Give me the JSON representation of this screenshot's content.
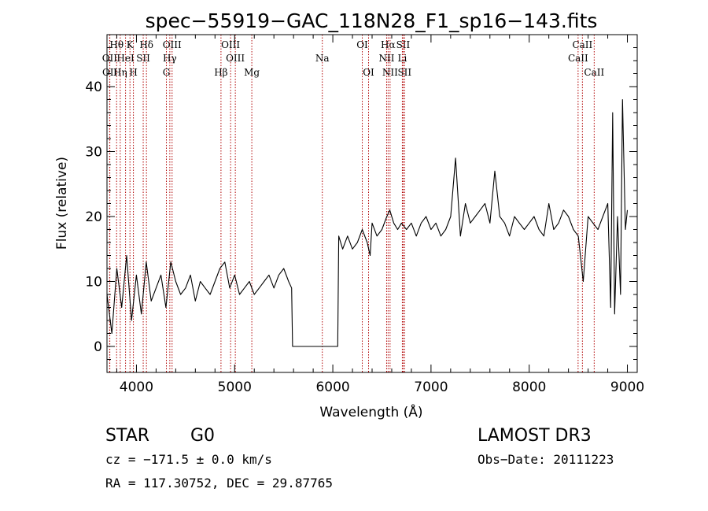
{
  "chart_data": {
    "type": "line",
    "title": "spec−55919−GAC_118N28_F1_sp16−143.fits",
    "xlabel": "Wavelength (Å)",
    "ylabel": "Flux (relative)",
    "xlim": [
      3700,
      9100
    ],
    "ylim": [
      -4,
      48
    ],
    "xticks": [
      4000,
      5000,
      6000,
      7000,
      8000,
      9000
    ],
    "yticks": [
      0,
      10,
      20,
      30,
      40
    ],
    "series": [
      {
        "name": "flux",
        "x": [
          3700,
          3750,
          3800,
          3850,
          3900,
          3950,
          4000,
          4050,
          4100,
          4150,
          4200,
          4250,
          4300,
          4350,
          4400,
          4450,
          4500,
          4550,
          4600,
          4650,
          4700,
          4750,
          4800,
          4850,
          4900,
          4950,
          5000,
          5050,
          5100,
          5150,
          5200,
          5250,
          5300,
          5350,
          5400,
          5450,
          5500,
          5550,
          5580,
          5590,
          6050,
          6060,
          6100,
          6150,
          6200,
          6250,
          6300,
          6350,
          6380,
          6400,
          6450,
          6500,
          6550,
          6580,
          6620,
          6660,
          6700,
          6750,
          6800,
          6850,
          6900,
          6950,
          7000,
          7050,
          7100,
          7150,
          7200,
          7250,
          7300,
          7350,
          7400,
          7450,
          7500,
          7550,
          7600,
          7650,
          7700,
          7750,
          7800,
          7850,
          7900,
          7950,
          8000,
          8050,
          8100,
          8150,
          8200,
          8250,
          8300,
          8350,
          8400,
          8450,
          8500,
          8550,
          8600,
          8650,
          8700,
          8750,
          8800,
          8830,
          8850,
          8870,
          8900,
          8930,
          8950,
          8980,
          9000
        ],
        "y": [
          8,
          2,
          12,
          6,
          14,
          4,
          11,
          5,
          13,
          7,
          9,
          11,
          6,
          13,
          10,
          8,
          9,
          11,
          7,
          10,
          9,
          8,
          10,
          12,
          13,
          9,
          11,
          8,
          9,
          10,
          8,
          9,
          10,
          11,
          9,
          11,
          12,
          10,
          9,
          0,
          0,
          17,
          15,
          17,
          15,
          16,
          18,
          16,
          14,
          19,
          17,
          18,
          20,
          21,
          19,
          18,
          19,
          18,
          19,
          17,
          19,
          20,
          18,
          19,
          17,
          18,
          20,
          29,
          17,
          22,
          19,
          20,
          21,
          22,
          19,
          27,
          20,
          19,
          17,
          20,
          19,
          18,
          19,
          20,
          18,
          17,
          22,
          18,
          19,
          21,
          20,
          18,
          17,
          10,
          20,
          19,
          18,
          20,
          22,
          6,
          36,
          5,
          20,
          8,
          38,
          18,
          21
        ]
      }
    ],
    "line_markers": [
      {
        "label": "Hθ",
        "wavelength": 3798,
        "row": 1
      },
      {
        "label": "K",
        "wavelength": 3934,
        "row": 1
      },
      {
        "label": "Hδ",
        "wavelength": 4102,
        "row": 1
      },
      {
        "label": "OIII",
        "wavelength": 4363,
        "row": 1
      },
      {
        "label": "OIII",
        "wavelength": 4959,
        "row": 1
      },
      {
        "label": "Na",
        "wavelength": 5893,
        "row": 2
      },
      {
        "label": "OI",
        "wavelength": 6300,
        "row": 1
      },
      {
        "label": "Hα",
        "wavelength": 6563,
        "row": 1
      },
      {
        "label": "SII",
        "wavelength": 6716,
        "row": 1
      },
      {
        "label": "CaII",
        "wavelength": 8542,
        "row": 1
      },
      {
        "label": "OII",
        "wavelength": 3727,
        "row": 2
      },
      {
        "label": "HeI",
        "wavelength": 3889,
        "row": 2
      },
      {
        "label": "SII",
        "wavelength": 4069,
        "row": 2
      },
      {
        "label": "Hγ",
        "wavelength": 4340,
        "row": 2
      },
      {
        "label": "OIII",
        "wavelength": 5007,
        "row": 2
      },
      {
        "label": "NII",
        "wavelength": 6548,
        "row": 2
      },
      {
        "label": "Li",
        "wavelength": 6708,
        "row": 2
      },
      {
        "label": "CaII",
        "wavelength": 8498,
        "row": 2
      },
      {
        "label": "OII",
        "wavelength": 3729,
        "row": 3
      },
      {
        "label": "Hη",
        "wavelength": 3835,
        "row": 3
      },
      {
        "label": "H",
        "wavelength": 3969,
        "row": 3
      },
      {
        "label": "G",
        "wavelength": 4305,
        "row": 3
      },
      {
        "label": "Hβ",
        "wavelength": 4861,
        "row": 3
      },
      {
        "label": "Mg",
        "wavelength": 5175,
        "row": 3
      },
      {
        "label": "OI",
        "wavelength": 6364,
        "row": 3
      },
      {
        "label": "NII",
        "wavelength": 6583,
        "row": 3
      },
      {
        "label": "SII",
        "wavelength": 6731,
        "row": 3
      },
      {
        "label": "CaII",
        "wavelength": 8662,
        "row": 3
      }
    ]
  },
  "info": {
    "class": "STAR",
    "subclass": "G0",
    "survey": "LAMOST DR3",
    "cz": "cz = −171.5 ± 0.0 km/s",
    "obs_date": "Obs−Date: 20111223",
    "coords": "RA = 117.30752, DEC =  29.87765"
  },
  "colors": {
    "line_marker": "#b00000",
    "spectrum": "#000000",
    "axes": "#000000"
  }
}
